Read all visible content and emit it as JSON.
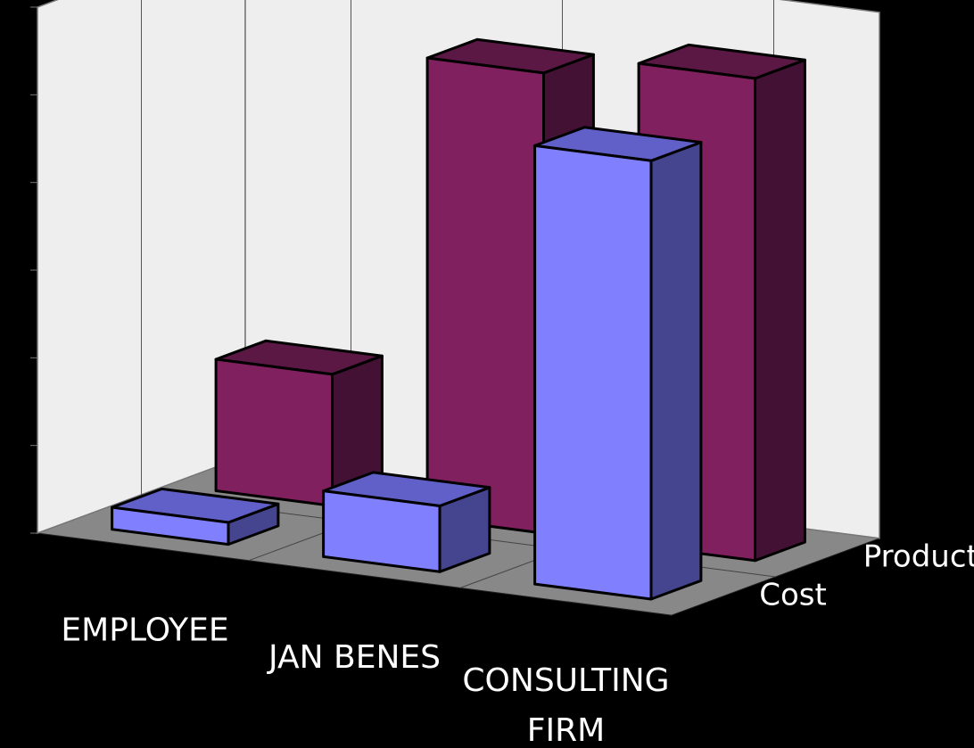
{
  "chart_data": {
    "type": "bar",
    "style": "3d-clustered-columns",
    "categories": [
      "EMPLOYEE",
      "JAN BENES",
      "CONSULTING FIRM"
    ],
    "category_lines": [
      [
        "EMPLOYEE"
      ],
      [
        "JAN BENES"
      ],
      [
        "CONSULTING",
        "FIRM"
      ]
    ],
    "series": [
      {
        "name": "Productivity",
        "values": [
          3.0,
          10.5,
          11.0
        ],
        "colors": {
          "front": "#80205e",
          "top": "#5b1845",
          "side": "#431133"
        }
      },
      {
        "name": "Cost",
        "values": [
          0.5,
          1.5,
          10.0
        ],
        "colors": {
          "front": "#8080ff",
          "top": "#6060c8",
          "side": "#45458f"
        }
      }
    ],
    "ylim": [
      0,
      12
    ],
    "grid": true,
    "legend": "none",
    "background": "#000000",
    "wall_color": "#eeeeee",
    "floor_color": "#888888"
  }
}
